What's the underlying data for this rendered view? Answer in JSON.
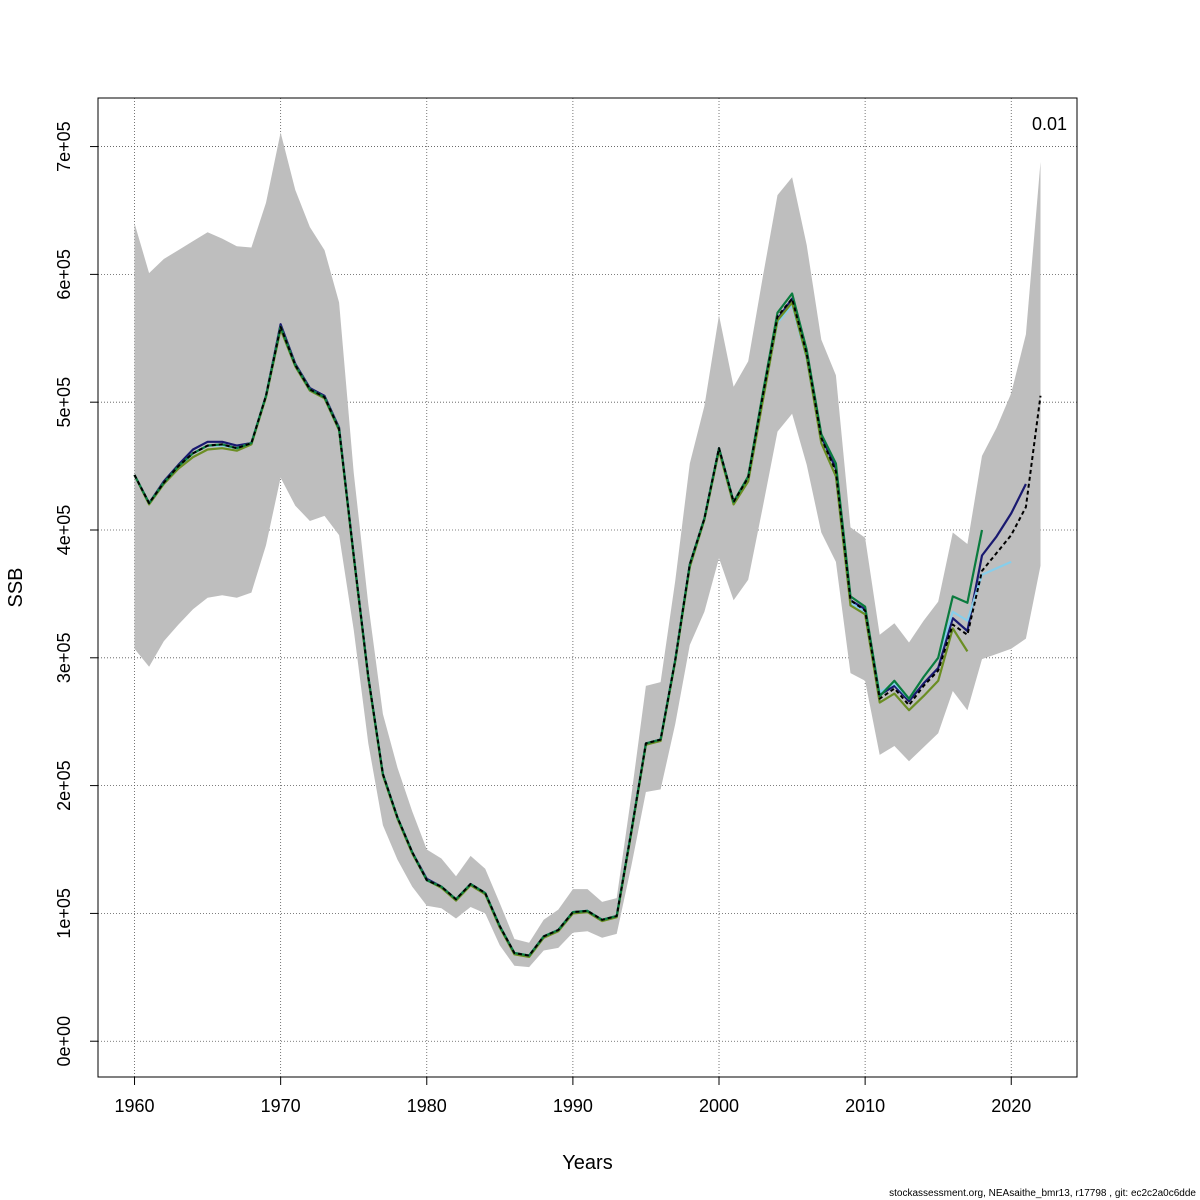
{
  "chart_data": {
    "type": "line",
    "xlabel": "Years",
    "ylabel": "SSB",
    "xlim": [
      1957.5,
      2024.5
    ],
    "ylim": [
      -28000,
      738000
    ],
    "grid": true,
    "x_ticks": [
      1960,
      1970,
      1980,
      1990,
      2000,
      2010,
      2020
    ],
    "y_ticks": [
      {
        "value": 0,
        "label": "0e+00"
      },
      {
        "value": 100000,
        "label": "1e+05"
      },
      {
        "value": 200000,
        "label": "2e+05"
      },
      {
        "value": 300000,
        "label": "3e+05"
      },
      {
        "value": 400000,
        "label": "4e+05"
      },
      {
        "value": 500000,
        "label": "5e+05"
      },
      {
        "value": 600000,
        "label": "6e+05"
      },
      {
        "value": 700000,
        "label": "7e+05"
      }
    ],
    "annotation": "0.01",
    "footer": "stockassessment.org, NEAsaithe_bmr13, r17798 , git: ec2c2a0c6dde",
    "band": {
      "color": "#bebebe",
      "years": [
        1960,
        1961,
        1962,
        1963,
        1964,
        1965,
        1966,
        1967,
        1968,
        1969,
        1970,
        1971,
        1972,
        1973,
        1974,
        1975,
        1976,
        1977,
        1978,
        1979,
        1980,
        1981,
        1982,
        1983,
        1984,
        1985,
        1986,
        1987,
        1988,
        1989,
        1990,
        1991,
        1992,
        1993,
        1994,
        1995,
        1996,
        1997,
        1998,
        1999,
        2000,
        2001,
        2002,
        2003,
        2004,
        2005,
        2006,
        2007,
        2008,
        2009,
        2010,
        2011,
        2012,
        2013,
        2014,
        2015,
        2016,
        2017,
        2018,
        2019,
        2020,
        2021,
        2022
      ],
      "upper": [
        640000,
        601000,
        612000,
        619000,
        626000,
        633000,
        628000,
        622000,
        621000,
        656000,
        711000,
        666000,
        637000,
        619000,
        578000,
        445000,
        342000,
        256000,
        214000,
        180000,
        150000,
        143000,
        129000,
        145000,
        135000,
        108000,
        80000,
        77000,
        95000,
        103000,
        119000,
        119000,
        109000,
        112000,
        192000,
        278000,
        281000,
        360000,
        452000,
        497000,
        568000,
        512000,
        532000,
        598000,
        662000,
        676000,
        623000,
        549000,
        521000,
        402000,
        394000,
        318000,
        327000,
        312000,
        329000,
        344000,
        398000,
        389000,
        458000,
        480000,
        507000,
        553000,
        688000
      ],
      "lower": [
        307000,
        293000,
        313000,
        326000,
        338000,
        347000,
        349000,
        347000,
        351000,
        388000,
        441000,
        419000,
        407000,
        411000,
        396000,
        322000,
        233000,
        169000,
        142000,
        121000,
        106000,
        104000,
        96000,
        105000,
        100000,
        75000,
        59000,
        58000,
        71000,
        73000,
        85000,
        86000,
        81000,
        84000,
        137000,
        195000,
        197000,
        248000,
        310000,
        336000,
        378000,
        345000,
        361000,
        418000,
        477000,
        491000,
        451000,
        398000,
        375000,
        288000,
        282000,
        224000,
        231000,
        219000,
        230000,
        241000,
        274000,
        259000,
        299000,
        303000,
        307000,
        315000,
        372000
      ]
    },
    "series": [
      {
        "color": "#191970",
        "years": [
          1960,
          1961,
          1962,
          1963,
          1964,
          1965,
          1966,
          1967,
          1968,
          1969,
          1970,
          1971,
          1972,
          1973,
          1974,
          1975,
          1976,
          1977,
          1978,
          1979,
          1980,
          1981,
          1982,
          1983,
          1984,
          1985,
          1986,
          1987,
          1988,
          1989,
          1990,
          1991,
          1992,
          1993,
          1994,
          1995,
          1996,
          1997,
          1998,
          1999,
          2000,
          2001,
          2002,
          2003,
          2004,
          2005,
          2006,
          2007,
          2008,
          2009,
          2010,
          2011,
          2012,
          2013,
          2014,
          2015,
          2016,
          2017,
          2018,
          2019,
          2020,
          2021
        ],
        "values": [
          443000,
          421000,
          438000,
          451000,
          463000,
          469000,
          469000,
          466000,
          468000,
          505000,
          561000,
          530000,
          511000,
          505000,
          480000,
          380000,
          285000,
          209000,
          175000,
          148000,
          127000,
          121000,
          111000,
          123000,
          116000,
          90000,
          69000,
          67000,
          82000,
          87000,
          101000,
          102000,
          95000,
          98000,
          164000,
          233000,
          236000,
          298000,
          373000,
          409000,
          464000,
          422000,
          441000,
          505000,
          565000,
          581000,
          538000,
          473000,
          448000,
          345000,
          338000,
          271000,
          278000,
          266000,
          280000,
          292000,
          331000,
          321000,
          380000,
          395000,
          413000,
          436000
        ]
      },
      {
        "color": "#87ceeb",
        "years": [
          1960,
          1961,
          1962,
          1963,
          1964,
          1965,
          1966,
          1967,
          1968,
          1969,
          1970,
          1971,
          1972,
          1973,
          1974,
          1975,
          1976,
          1977,
          1978,
          1979,
          1980,
          1981,
          1982,
          1983,
          1984,
          1985,
          1986,
          1987,
          1988,
          1989,
          1990,
          1991,
          1992,
          1993,
          1994,
          1995,
          1996,
          1997,
          1998,
          1999,
          2000,
          2001,
          2002,
          2003,
          2004,
          2005,
          2006,
          2007,
          2008,
          2009,
          2010,
          2011,
          2012,
          2013,
          2014,
          2015,
          2016,
          2017,
          2018,
          2019,
          2020
        ],
        "values": [
          443000,
          421000,
          437000,
          449000,
          460000,
          466000,
          466000,
          464000,
          468000,
          505000,
          559000,
          529000,
          510000,
          504000,
          479000,
          380000,
          285000,
          209000,
          175000,
          148000,
          126000,
          121000,
          111000,
          123000,
          116000,
          90000,
          69000,
          67000,
          82000,
          87000,
          101000,
          102000,
          95000,
          98000,
          164000,
          233000,
          236000,
          298000,
          372000,
          409000,
          463000,
          421000,
          440000,
          503000,
          562000,
          576000,
          534000,
          469000,
          442000,
          343000,
          336000,
          273000,
          280000,
          268000,
          285000,
          300000,
          336000,
          329000,
          365000,
          370000,
          375000
        ]
      },
      {
        "color": "#6b8e23",
        "years": [
          1960,
          1961,
          1962,
          1963,
          1964,
          1965,
          1966,
          1967,
          1968,
          1969,
          1970,
          1971,
          1972,
          1973,
          1974,
          1975,
          1976,
          1977,
          1978,
          1979,
          1980,
          1981,
          1982,
          1983,
          1984,
          1985,
          1986,
          1987,
          1988,
          1989,
          1990,
          1991,
          1992,
          1993,
          1994,
          1995,
          1996,
          1997,
          1998,
          1999,
          2000,
          2001,
          2002,
          2003,
          2004,
          2005,
          2006,
          2007,
          2008,
          2009,
          2010,
          2011,
          2012,
          2013,
          2014,
          2015,
          2016,
          2017
        ],
        "values": [
          443000,
          420000,
          436000,
          448000,
          457000,
          463000,
          464000,
          462000,
          467000,
          504000,
          557000,
          528000,
          509000,
          503000,
          478000,
          379000,
          284000,
          208000,
          174000,
          147000,
          126000,
          120000,
          110000,
          122000,
          115000,
          89000,
          68000,
          66000,
          81000,
          86000,
          100000,
          101000,
          94000,
          97000,
          163000,
          232000,
          235000,
          297000,
          371000,
          408000,
          462000,
          420000,
          438000,
          501000,
          564000,
          578000,
          535000,
          468000,
          442000,
          341000,
          334000,
          265000,
          272000,
          259000,
          270000,
          282000,
          323000,
          305000
        ]
      },
      {
        "color": "#0a7b3e",
        "years": [
          1960,
          1961,
          1962,
          1963,
          1964,
          1965,
          1966,
          1967,
          1968,
          1969,
          1970,
          1971,
          1972,
          1973,
          1974,
          1975,
          1976,
          1977,
          1978,
          1979,
          1980,
          1981,
          1982,
          1983,
          1984,
          1985,
          1986,
          1987,
          1988,
          1989,
          1990,
          1991,
          1992,
          1993,
          1994,
          1995,
          1996,
          1997,
          1998,
          1999,
          2000,
          2001,
          2002,
          2003,
          2004,
          2005,
          2006,
          2007,
          2008,
          2009,
          2010,
          2011,
          2012,
          2013,
          2014,
          2015,
          2016,
          2017,
          2018
        ],
        "values": [
          443000,
          421000,
          437000,
          450000,
          460000,
          466000,
          467000,
          464000,
          468000,
          505000,
          559000,
          529000,
          510000,
          504000,
          479000,
          380000,
          285000,
          209000,
          175000,
          148000,
          126000,
          121000,
          111000,
          123000,
          116000,
          90000,
          69000,
          67000,
          82000,
          87000,
          101000,
          102000,
          95000,
          98000,
          164000,
          233000,
          236000,
          298000,
          373000,
          409000,
          464000,
          422000,
          442000,
          507000,
          570000,
          585000,
          541000,
          475000,
          452000,
          348000,
          340000,
          270000,
          282000,
          268000,
          285000,
          300000,
          348000,
          343000,
          400000
        ]
      },
      {
        "color": "#000000",
        "dashed": true,
        "years": [
          1960,
          1961,
          1962,
          1963,
          1964,
          1965,
          1966,
          1967,
          1968,
          1969,
          1970,
          1971,
          1972,
          1973,
          1974,
          1975,
          1976,
          1977,
          1978,
          1979,
          1980,
          1981,
          1982,
          1983,
          1984,
          1985,
          1986,
          1987,
          1988,
          1989,
          1990,
          1991,
          1992,
          1993,
          1994,
          1995,
          1996,
          1997,
          1998,
          1999,
          2000,
          2001,
          2002,
          2003,
          2004,
          2005,
          2006,
          2007,
          2008,
          2009,
          2010,
          2011,
          2012,
          2013,
          2014,
          2015,
          2016,
          2017,
          2018,
          2019,
          2020,
          2021,
          2022
        ],
        "values": [
          443000,
          421000,
          437000,
          450000,
          460000,
          466000,
          467000,
          464000,
          468000,
          505000,
          559000,
          529000,
          510000,
          504000,
          479000,
          380000,
          285000,
          209000,
          175000,
          148000,
          126000,
          121000,
          111000,
          123000,
          116000,
          90000,
          69000,
          67000,
          82000,
          87000,
          101000,
          102000,
          95000,
          98000,
          164000,
          233000,
          236000,
          298000,
          373000,
          409000,
          464000,
          422000,
          441000,
          505000,
          567000,
          581000,
          538000,
          472000,
          446000,
          345000,
          337000,
          268000,
          276000,
          263000,
          278000,
          290000,
          326000,
          318000,
          368000,
          382000,
          396000,
          418000,
          505000
        ]
      }
    ]
  }
}
